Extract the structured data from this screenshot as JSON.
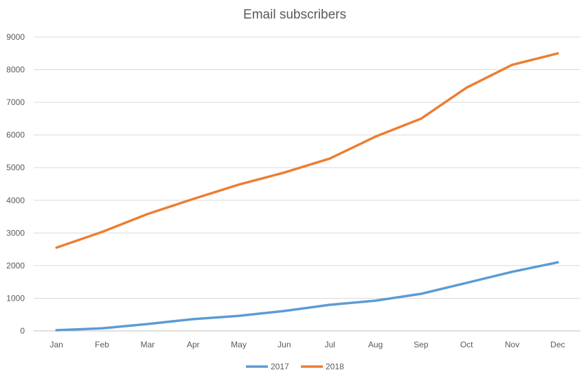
{
  "chart_data": {
    "type": "line",
    "title": "Email subscribers",
    "xlabel": "",
    "ylabel": "",
    "categories": [
      "Jan",
      "Feb",
      "Mar",
      "Apr",
      "May",
      "Jun",
      "Jul",
      "Aug",
      "Sep",
      "Oct",
      "Nov",
      "Dec"
    ],
    "ylim": [
      0,
      9000
    ],
    "yticks": [
      0,
      1000,
      2000,
      3000,
      4000,
      5000,
      6000,
      7000,
      8000,
      9000
    ],
    "grid": true,
    "legend_position": "bottom",
    "series": [
      {
        "name": "2017",
        "color": "#5B9BD5",
        "values": [
          20,
          80,
          210,
          360,
          460,
          610,
          800,
          925,
          1135,
          1470,
          1810,
          2100
        ]
      },
      {
        "name": "2018",
        "color": "#ED7D31",
        "values": [
          2550,
          3030,
          3580,
          4040,
          4480,
          4850,
          5280,
          5950,
          6500,
          7450,
          8150,
          8500
        ]
      }
    ]
  }
}
